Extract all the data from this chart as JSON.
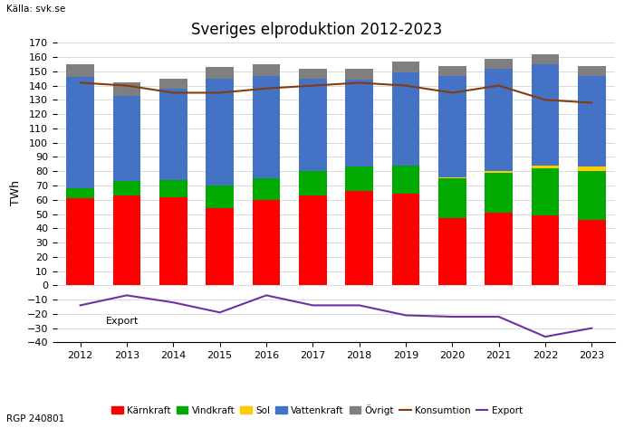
{
  "years": [
    2012,
    2013,
    2014,
    2015,
    2016,
    2017,
    2018,
    2019,
    2020,
    2021,
    2022,
    2023
  ],
  "karnkraft": [
    61,
    63,
    62,
    54,
    60,
    63,
    66,
    64,
    47,
    51,
    49,
    46
  ],
  "vindkraft": [
    7,
    10,
    12,
    16,
    15,
    17,
    17,
    20,
    28,
    28,
    33,
    34
  ],
  "sol": [
    0,
    0,
    0,
    0,
    0,
    0,
    0,
    0,
    1,
    1,
    2,
    3
  ],
  "vattenkraft": [
    78,
    60,
    64,
    75,
    72,
    65,
    61,
    65,
    71,
    72,
    71,
    64
  ],
  "ovrigt": [
    9,
    9,
    7,
    8,
    8,
    7,
    8,
    8,
    7,
    7,
    7,
    7
  ],
  "konsumtion": [
    142,
    140,
    135,
    135,
    138,
    140,
    142,
    140,
    135,
    140,
    130,
    128
  ],
  "export": [
    -14,
    -7,
    -12,
    -19,
    -7,
    -14,
    -14,
    -21,
    -22,
    -22,
    -36,
    -30
  ],
  "title": "Sveriges elproduktion 2012-2023",
  "ylabel": "TWh",
  "source": "Källa: svk.se",
  "footnote": "RGP 240801",
  "export_label": "Export",
  "bar_colors": {
    "karnkraft": "#FF0000",
    "vindkraft": "#00AA00",
    "sol": "#FFCC00",
    "vattenkraft": "#4472C4",
    "ovrigt": "#7F7F7F"
  },
  "line_colors": {
    "konsumtion": "#843C0C",
    "export": "#7030A0"
  },
  "legend_labels": [
    "Kärnkraft",
    "Vindkraft",
    "Sol",
    "Vattenkraft",
    "Övrigt",
    "Konsumtion",
    "Export"
  ],
  "ylim": [
    -40,
    170
  ],
  "background_color": "#FFFFFF",
  "plot_bg_color": "#FFFFFF"
}
